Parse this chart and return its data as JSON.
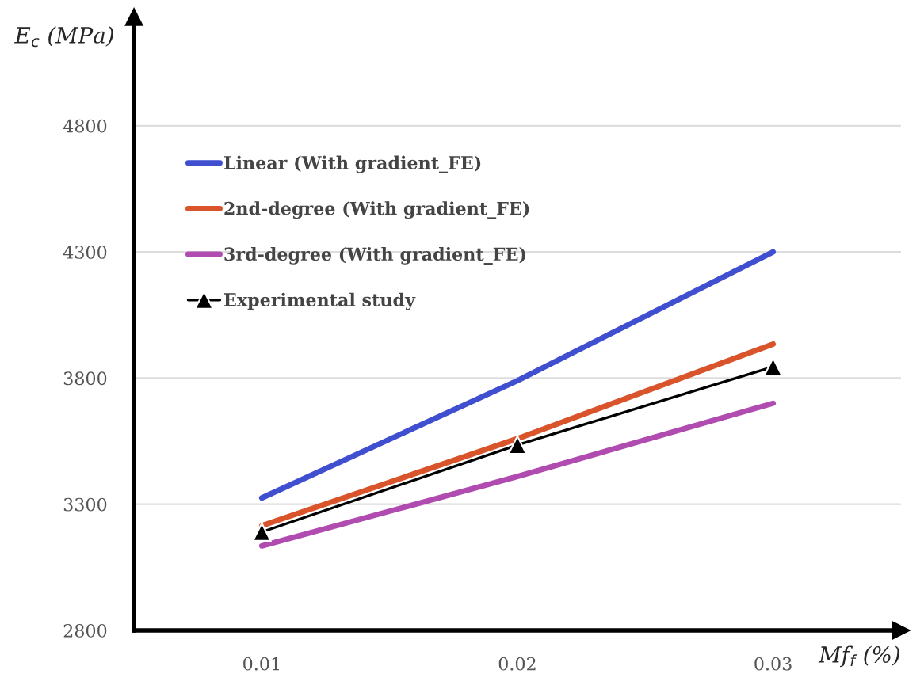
{
  "chart_data": {
    "type": "line",
    "xlabel": "Mf$_{f}$ (%)",
    "ylabel": "E$_{c}$ (MPa)",
    "x": [
      0.01,
      0.02,
      0.03
    ],
    "series": [
      {
        "name": "Linear (With gradient_FE)",
        "color": "#3f4fcf",
        "values": [
          3325,
          3790,
          4300
        ]
      },
      {
        "name": "2nd-degree (With gradient_FE)",
        "color": "#d9532b",
        "values": [
          3215,
          3560,
          3935
        ]
      },
      {
        "name": "3rd-degree (With gradient_FE)",
        "color": "#b04bb0",
        "values": [
          3135,
          3410,
          3700
        ]
      },
      {
        "name": "Experimental study",
        "color": "#000000",
        "values": [
          3190,
          3535,
          3845
        ],
        "marker": "triangle"
      }
    ],
    "xlim": [
      0.005,
      0.035
    ],
    "xticks": [
      0.01,
      0.02,
      0.03
    ],
    "ylim": [
      2800,
      5230
    ],
    "yticks": [
      2800,
      3300,
      3800,
      4300,
      4800
    ],
    "grid": "y",
    "legend": "top left"
  }
}
